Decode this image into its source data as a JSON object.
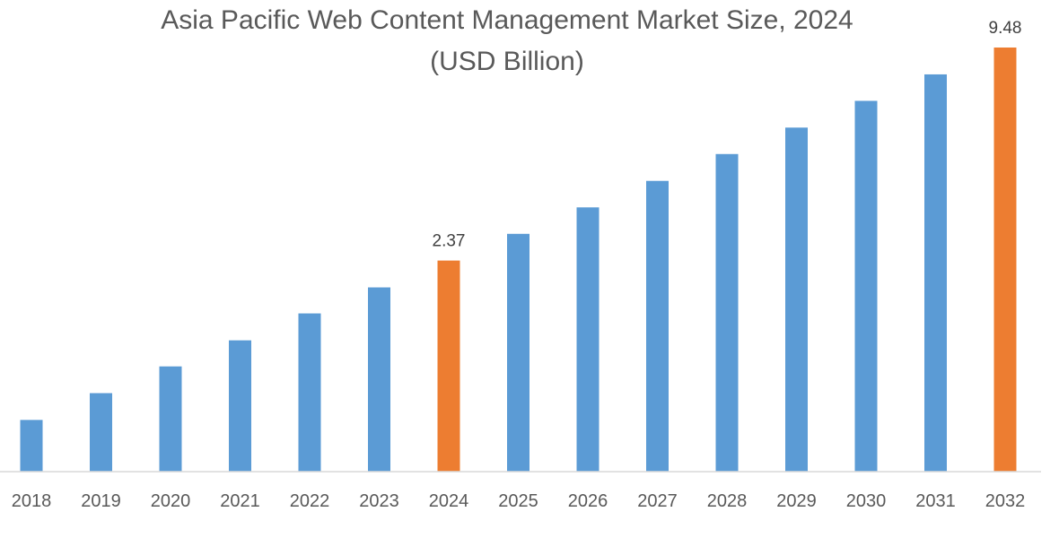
{
  "chart_data": {
    "type": "bar",
    "title": "Asia Pacific Web Content Management Market Size, 2024",
    "subtitle": "(USD Billion)",
    "xlabel": "",
    "ylabel": "",
    "categories": [
      "2018",
      "2019",
      "2020",
      "2021",
      "2022",
      "2023",
      "2024",
      "2025",
      "2026",
      "2027",
      "2028",
      "2029",
      "2030",
      "2031",
      "2032"
    ],
    "values": [
      0.84,
      1.0,
      1.19,
      1.41,
      1.68,
      1.99,
      2.37,
      2.82,
      3.35,
      3.98,
      4.74,
      5.63,
      6.7,
      7.96,
      9.48
    ],
    "data_labels": {
      "2024": "2.37",
      "2032": "9.48"
    },
    "highlight": [
      "2024",
      "2032"
    ],
    "y_scale": "log",
    "ylim": [
      0.6,
      9.48
    ],
    "y_axis_visible": false,
    "grid": false,
    "legend": "none",
    "colors": {
      "bar": "#5B9BD5",
      "highlight": "#ED7D31",
      "axis": "#D9D9D9",
      "text": "#595959"
    }
  }
}
